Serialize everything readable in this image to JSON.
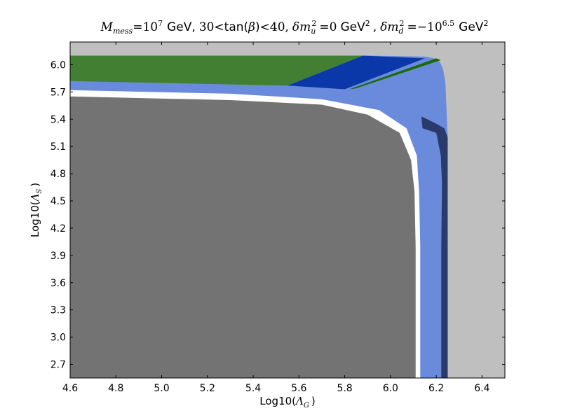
{
  "chart_data": {
    "type": "heatmap",
    "title_parts": {
      "m_symbol": "M",
      "m_sub": "mess",
      "eq": "=",
      "m_base": "10",
      "m_exp": "7",
      "gev1": "GeV,",
      "tan_low": "30",
      "lt1": "<",
      "tan_text": "tan(",
      "beta": "β",
      "tan_close": ")",
      "lt2": "<",
      "tan_high": "40,",
      "dmu_delta": "δm",
      "dmu_sub": "u",
      "dmu_sup": "2",
      "dmu_eq": "=",
      "dmu_val": "0",
      "gev2": "GeV",
      "gev2_sup": "2",
      "comma": ",",
      "dmd_delta": "δm",
      "dmd_sub": "d",
      "dmd_sup": "2",
      "dmd_eq": "=",
      "dmd_val": "−10",
      "dmd_exp": "6.5",
      "gev3": "GeV",
      "gev3_sup": "2"
    },
    "xlabel_parts": {
      "prefix": "Log10(",
      "symbol": "Λ",
      "sub": "G",
      "suffix": ")"
    },
    "ylabel_parts": {
      "prefix": "Log10(",
      "symbol": "Λ",
      "sub": "S",
      "suffix": ")"
    },
    "xlim": [
      4.6,
      6.5
    ],
    "ylim": [
      2.55,
      6.25
    ],
    "xticks": [
      "4.6",
      "4.8",
      "5.0",
      "5.2",
      "5.4",
      "5.6",
      "5.8",
      "6.0",
      "6.2",
      "6.4"
    ],
    "yticks": [
      "2.7",
      "3.0",
      "3.3",
      "3.6",
      "3.9",
      "4.2",
      "4.5",
      "4.8",
      "5.1",
      "5.4",
      "5.7",
      "6.0"
    ],
    "grid": false,
    "regions": [
      {
        "name": "background",
        "color": "#bfbfbf",
        "points": [
          [
            4.6,
            2.55
          ],
          [
            6.5,
            2.55
          ],
          [
            6.5,
            6.25
          ],
          [
            4.6,
            6.25
          ]
        ]
      },
      {
        "name": "light-blue",
        "color": "#6a8bdb",
        "points": [
          [
            4.6,
            2.55
          ],
          [
            6.25,
            2.55
          ],
          [
            6.25,
            5.2
          ],
          [
            6.245,
            5.5
          ],
          [
            6.24,
            5.8
          ],
          [
            6.23,
            5.95
          ],
          [
            6.21,
            6.06
          ],
          [
            6.15,
            6.09
          ],
          [
            5.9,
            6.1
          ],
          [
            4.6,
            6.1
          ]
        ]
      },
      {
        "name": "dark-navy",
        "color": "#2a3a6a",
        "points": [
          [
            6.222,
            2.55
          ],
          [
            6.25,
            2.55
          ],
          [
            6.25,
            5.2
          ],
          [
            6.235,
            5.3
          ],
          [
            6.2,
            5.35
          ],
          [
            6.16,
            5.4
          ],
          [
            6.135,
            5.43
          ],
          [
            6.14,
            5.3
          ],
          [
            6.2,
            5.25
          ],
          [
            6.22,
            5.0
          ],
          [
            6.225,
            4.7
          ],
          [
            6.222,
            4.0
          ]
        ]
      },
      {
        "name": "white-gap",
        "color": "#ffffff",
        "points": [
          [
            4.6,
            2.55
          ],
          [
            6.13,
            2.55
          ],
          [
            6.13,
            4.0
          ],
          [
            6.125,
            4.6
          ],
          [
            6.115,
            5.0
          ],
          [
            6.07,
            5.3
          ],
          [
            5.95,
            5.5
          ],
          [
            5.7,
            5.62
          ],
          [
            5.3,
            5.68
          ],
          [
            4.6,
            5.72
          ]
        ]
      },
      {
        "name": "gray-excluded",
        "color": "#737373",
        "points": [
          [
            4.6,
            2.55
          ],
          [
            6.11,
            2.55
          ],
          [
            6.11,
            4.0
          ],
          [
            6.105,
            4.6
          ],
          [
            6.09,
            4.95
          ],
          [
            6.04,
            5.25
          ],
          [
            5.9,
            5.45
          ],
          [
            5.7,
            5.56
          ],
          [
            5.3,
            5.61
          ],
          [
            4.6,
            5.65
          ]
        ]
      },
      {
        "name": "green-top",
        "color": "#437f33",
        "points": [
          [
            4.6,
            5.82
          ],
          [
            5.55,
            5.77
          ],
          [
            5.88,
            6.1
          ],
          [
            4.6,
            6.1
          ]
        ]
      },
      {
        "name": "blue-band",
        "color": "#0a38a8",
        "points": [
          [
            5.55,
            5.77
          ],
          [
            5.8,
            5.73
          ],
          [
            6.15,
            6.07
          ],
          [
            5.88,
            6.1
          ]
        ]
      },
      {
        "name": "green-stripe",
        "color": "#1a6a0a",
        "points": [
          [
            5.82,
            5.73
          ],
          [
            5.85,
            5.74
          ],
          [
            6.22,
            6.05
          ],
          [
            6.2,
            6.07
          ]
        ]
      }
    ]
  }
}
